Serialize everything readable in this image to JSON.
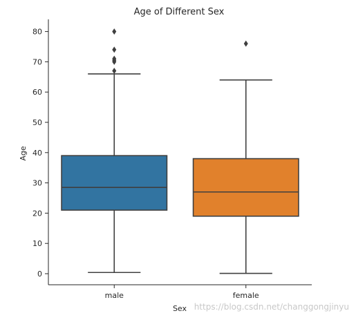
{
  "chart_data": {
    "type": "box",
    "title": "Age of Different Sex",
    "xlabel": "Sex",
    "ylabel": "Age",
    "ylim": [
      -3.5,
      84
    ],
    "yticks": [
      0,
      10,
      20,
      30,
      40,
      50,
      60,
      70,
      80
    ],
    "categories": [
      "male",
      "female"
    ],
    "boxes": [
      {
        "category": "male",
        "whisker_low": 0.4,
        "q1": 21,
        "median": 28.5,
        "q3": 39,
        "whisker_high": 66,
        "outliers": [
          67,
          70,
          70.5,
          71,
          74,
          80
        ],
        "color": "#3274a1"
      },
      {
        "category": "female",
        "whisker_low": 0.1,
        "q1": 19,
        "median": 27,
        "q3": 38,
        "whisker_high": 64,
        "outliers": [
          76
        ],
        "color": "#e1812c"
      }
    ],
    "grid": false,
    "legend": "none"
  },
  "watermark": "https://blog.csdn.net/changgongjinyu"
}
